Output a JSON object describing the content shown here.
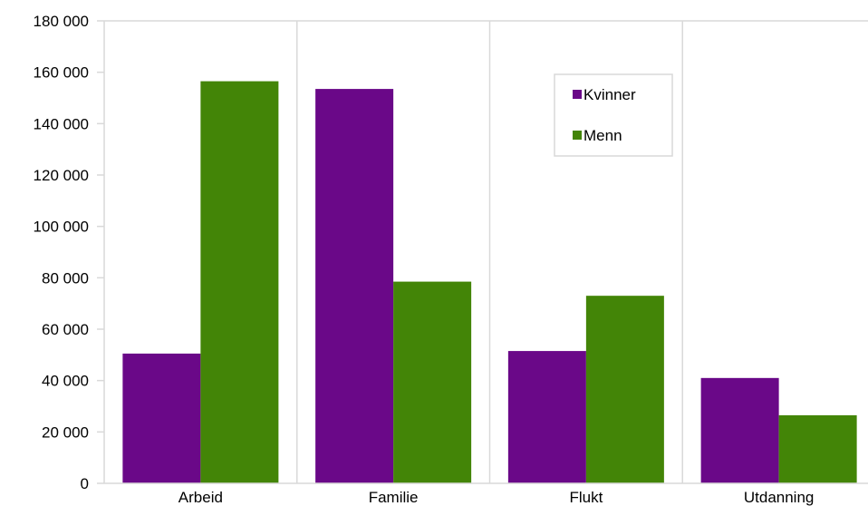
{
  "chart_data": {
    "type": "bar",
    "categories": [
      "Arbeid",
      "Familie",
      "Flukt",
      "Utdanning"
    ],
    "series": [
      {
        "name": "Kvinner",
        "color": "#6a0888",
        "values": [
          50500,
          153500,
          51500,
          41000
        ]
      },
      {
        "name": "Menn",
        "color": "#438507",
        "values": [
          156500,
          78500,
          73000,
          26500
        ]
      }
    ],
    "ylim": [
      0,
      180000
    ],
    "yticks": [
      0,
      20000,
      40000,
      60000,
      80000,
      100000,
      120000,
      140000,
      160000,
      180000
    ],
    "ytick_labels": [
      "0",
      "20 000",
      "40 000",
      "60 000",
      "80 000",
      "100 000",
      "120 000",
      "140 000",
      "160 000",
      "180 000"
    ],
    "grid": "vertical category separators",
    "legend": "top-right inside plot"
  }
}
